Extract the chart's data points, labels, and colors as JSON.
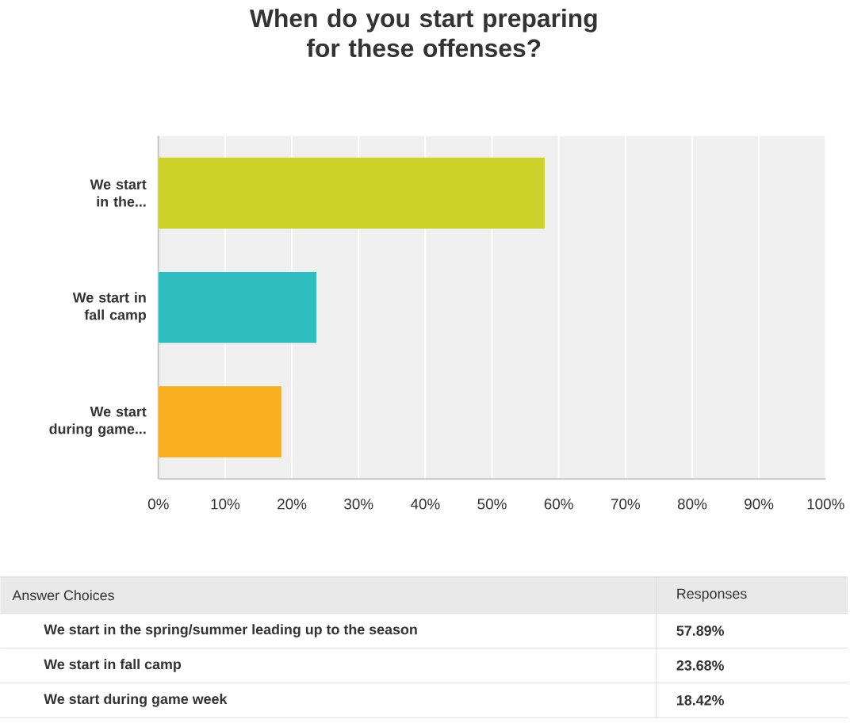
{
  "chart_data": {
    "type": "bar",
    "orientation": "horizontal",
    "title": "When do you start preparing for these offenses?",
    "categories": [
      "We start in the...",
      "We start in fall camp",
      "We start during game..."
    ],
    "values": [
      57.89,
      23.68,
      18.42
    ],
    "colors": [
      "#cdd329",
      "#2fbdbf",
      "#f7ae1f"
    ],
    "xlim": [
      0,
      100
    ],
    "xticks": [
      {
        "value": 0,
        "label": "0%"
      },
      {
        "value": 10,
        "label": "10%"
      },
      {
        "value": 20,
        "label": "20%"
      },
      {
        "value": 30,
        "label": "30%"
      },
      {
        "value": 40,
        "label": "40%"
      },
      {
        "value": 50,
        "label": "50%"
      },
      {
        "value": 60,
        "label": "60%"
      },
      {
        "value": 70,
        "label": "70%"
      },
      {
        "value": 80,
        "label": "80%"
      },
      {
        "value": 90,
        "label": "90%"
      },
      {
        "value": 100,
        "label": "100%"
      }
    ],
    "grid": "x",
    "annotations": [
      "Answer Choices",
      "Responses",
      "We start in the spring/summer leading up to the season",
      "57.89%",
      "We start in fall camp",
      "23.68%",
      "We start during game week",
      "18.42%"
    ]
  }
}
